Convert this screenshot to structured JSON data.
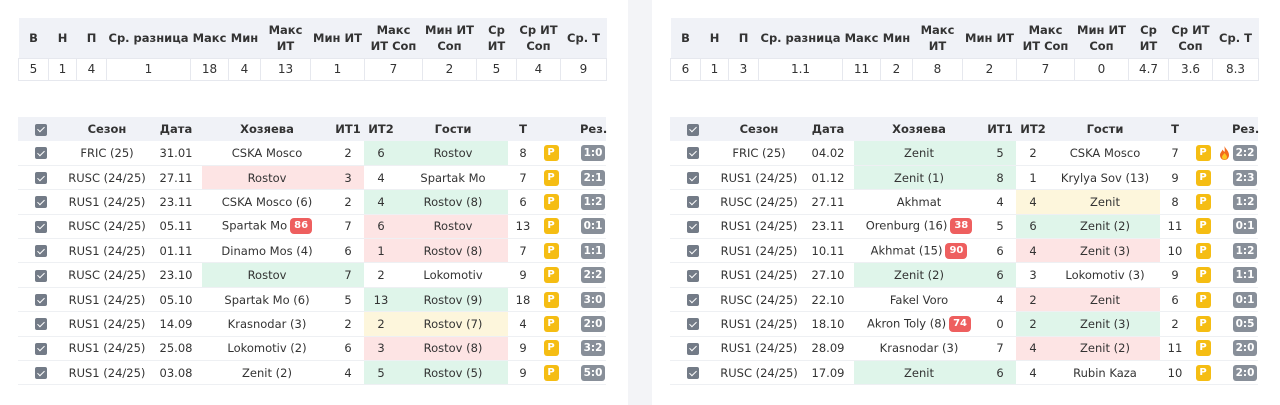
{
  "left": {
    "stats": {
      "headers": [
        "В",
        "Н",
        "П",
        "Ср. разница",
        "Макс",
        "Мин",
        "Макс ИТ",
        "Мин ИТ",
        "Макс ИТ Соп",
        "Мин ИТ Соп",
        "Ср ИТ",
        "Ср ИТ Соп",
        "Ср. Т"
      ],
      "values": [
        "5",
        "1",
        "4",
        "1",
        "18",
        "4",
        "13",
        "1",
        "7",
        "2",
        "5",
        "4",
        "9"
      ]
    },
    "matches": {
      "headers": [
        "Сезон",
        "Дата",
        "Хозяева",
        "ИТ1",
        "ИТ2",
        "Гости",
        "Т",
        "",
        "",
        "Рез."
      ],
      "rows": [
        {
          "season": "FRIC (25)",
          "date": "31.01",
          "home": "CSKA Mosco",
          "it1": "2",
          "it2": "6",
          "away": "Rostov",
          "total": "8",
          "result": "1:0"
        },
        {
          "season": "RUSC (24/25)",
          "date": "27.11",
          "home": "Rostov",
          "it1": "3",
          "it2": "4",
          "away": "Spartak Mo",
          "total": "7",
          "result": "2:1"
        },
        {
          "season": "RUS1 (24/25)",
          "date": "23.11",
          "home": "CSKA Mosco (6)",
          "it1": "2",
          "it2": "4",
          "away": "Rostov (8)",
          "total": "6",
          "result": "1:2"
        },
        {
          "season": "RUSC (24/25)",
          "date": "05.11",
          "home": "Spartak Mo",
          "home_badge": "86",
          "it1": "7",
          "it2": "6",
          "away": "Rostov",
          "total": "13",
          "result": "0:1"
        },
        {
          "season": "RUS1 (24/25)",
          "date": "01.11",
          "home": "Dinamo Mos (4)",
          "it1": "6",
          "it2": "1",
          "away": "Rostov (8)",
          "total": "7",
          "result": "1:1"
        },
        {
          "season": "RUSC (24/25)",
          "date": "23.10",
          "home": "Rostov",
          "it1": "7",
          "it2": "2",
          "away": "Lokomotiv",
          "total": "9",
          "result": "2:2"
        },
        {
          "season": "RUS1 (24/25)",
          "date": "05.10",
          "home": "Spartak Mo (6)",
          "it1": "5",
          "it2": "13",
          "away": "Rostov (9)",
          "total": "18",
          "result": "3:0"
        },
        {
          "season": "RUS1 (24/25)",
          "date": "14.09",
          "home": "Krasnodar (3)",
          "it1": "2",
          "it2": "2",
          "away": "Rostov (7)",
          "total": "4",
          "result": "2:0"
        },
        {
          "season": "RUS1 (24/25)",
          "date": "25.08",
          "home": "Lokomotiv  (2)",
          "it1": "6",
          "it2": "3",
          "away": "Rostov (8)",
          "total": "9",
          "result": "3:2"
        },
        {
          "season": "RUS1 (24/25)",
          "date": "03.08",
          "home": "Zenit (2)",
          "it1": "4",
          "it2": "5",
          "away": "Rostov (5)",
          "total": "9",
          "result": "5:0"
        }
      ]
    }
  },
  "right": {
    "stats": {
      "headers": [
        "В",
        "Н",
        "П",
        "Ср. разница",
        "Макс",
        "Мин",
        "Макс ИТ",
        "Мин ИТ",
        "Макс ИТ Соп",
        "Мин ИТ Соп",
        "Ср ИТ",
        "Ср ИТ Соп",
        "Ср. Т"
      ],
      "values": [
        "6",
        "1",
        "3",
        "1.1",
        "11",
        "2",
        "8",
        "2",
        "7",
        "0",
        "4.7",
        "3.6",
        "8.3"
      ]
    },
    "matches": {
      "headers": [
        "Сезон",
        "Дата",
        "Хозяева",
        "ИТ1",
        "ИТ2",
        "Гости",
        "Т",
        "",
        "",
        "Рез."
      ],
      "rows": [
        {
          "season": "FRIC (25)",
          "date": "04.02",
          "home": "Zenit",
          "it1": "5",
          "it2": "2",
          "away": "CSKA Mosco",
          "total": "7",
          "fire": true,
          "result": "2:2"
        },
        {
          "season": "RUS1 (24/25)",
          "date": "01.12",
          "home": "Zenit (1)",
          "it1": "8",
          "it2": "1",
          "away": "Krylya Sov (13)",
          "total": "9",
          "result": "2:3"
        },
        {
          "season": "RUSC (24/25)",
          "date": "27.11",
          "home": "Akhmat",
          "it1": "4",
          "it2": "4",
          "away": "Zenit",
          "total": "8",
          "result": "1:2"
        },
        {
          "season": "RUS1 (24/25)",
          "date": "23.11",
          "home": "Orenburg (16)",
          "home_badge": "38",
          "it1": "5",
          "it2": "6",
          "away": "Zenit (2)",
          "total": "11",
          "result": "0:1"
        },
        {
          "season": "RUS1 (24/25)",
          "date": "10.11",
          "home": "Akhmat (15)",
          "home_badge": "90",
          "it1": "6",
          "it2": "4",
          "away": "Zenit (3)",
          "total": "10",
          "result": "1:2"
        },
        {
          "season": "RUS1 (24/25)",
          "date": "27.10",
          "home": "Zenit (2)",
          "it1": "6",
          "it2": "3",
          "away": "Lokomotiv  (3)",
          "total": "9",
          "result": "1:1"
        },
        {
          "season": "RUSC (24/25)",
          "date": "22.10",
          "home": "Fakel Voro",
          "it1": "4",
          "it2": "2",
          "away": "Zenit",
          "total": "6",
          "result": "0:1"
        },
        {
          "season": "RUS1 (24/25)",
          "date": "18.10",
          "home": "Akron Toly (8)",
          "home_badge": "74",
          "it1": "0",
          "it2": "2",
          "away": "Zenit (3)",
          "total": "2",
          "result": "0:5"
        },
        {
          "season": "RUS1 (24/25)",
          "date": "28.09",
          "home": "Krasnodar (3)",
          "it1": "7",
          "it2": "4",
          "away": "Zenit (2)",
          "total": "11",
          "result": "2:0"
        },
        {
          "season": "RUSC (24/25)",
          "date": "17.09",
          "home": "Zenit",
          "it1": "6",
          "it2": "4",
          "away": "Rubin Kaza",
          "total": "10",
          "result": "2:0"
        }
      ]
    }
  },
  "badge_label": "P",
  "colors": {
    "header_bg": "#f0f2f7",
    "win_green": "#dff5ea",
    "loss_red": "#fde4e4",
    "draw_yellow": "#fdf6dc",
    "badge_yellow": "#f5bd13",
    "result_gray": "#888f99",
    "rank_red": "#ee5f5f"
  }
}
